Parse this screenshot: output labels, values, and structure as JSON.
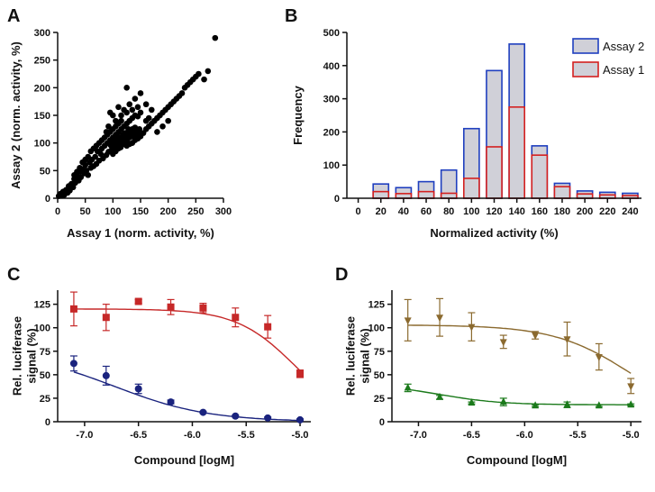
{
  "panels": [
    {
      "label": "A",
      "chart_data": {
        "type": "scatter",
        "title": "",
        "xlabel": "Assay 1 (norm. activity, %)",
        "ylabel": "Assay 2 (norm. activity, %)",
        "xlim": [
          0,
          300
        ],
        "ylim": [
          0,
          300
        ],
        "xticks": [
          0,
          50,
          100,
          150,
          200,
          250,
          300
        ],
        "yticks": [
          0,
          50,
          100,
          150,
          200,
          250,
          300
        ],
        "color": "#000000",
        "series": [
          {
            "name": "compounds",
            "points": [
              [
                2,
                4
              ],
              [
                5,
                8
              ],
              [
                8,
                5
              ],
              [
                10,
                12
              ],
              [
                12,
                6
              ],
              [
                15,
                15
              ],
              [
                18,
                10
              ],
              [
                20,
                22
              ],
              [
                22,
                14
              ],
              [
                25,
                26
              ],
              [
                28,
                20
              ],
              [
                30,
                35
              ],
              [
                32,
                28
              ],
              [
                35,
                40
              ],
              [
                38,
                32
              ],
              [
                40,
                48
              ],
              [
                42,
                38
              ],
              [
                45,
                52
              ],
              [
                48,
                45
              ],
              [
                50,
                60
              ],
              [
                52,
                50
              ],
              [
                55,
                42
              ],
              [
                58,
                65
              ],
              [
                60,
                55
              ],
              [
                62,
                70
              ],
              [
                65,
                58
              ],
              [
                68,
                75
              ],
              [
                70,
                62
              ],
              [
                72,
                85
              ],
              [
                75,
                68
              ],
              [
                78,
                80
              ],
              [
                80,
                90
              ],
              [
                82,
                72
              ],
              [
                85,
                95
              ],
              [
                88,
                78
              ],
              [
                90,
                100
              ],
              [
                92,
                84
              ],
              [
                95,
                105
              ],
              [
                98,
                88
              ],
              [
                100,
                110
              ],
              [
                102,
                95
              ],
              [
                105,
                115
              ],
              [
                108,
                98
              ],
              [
                110,
                120
              ],
              [
                112,
                102
              ],
              [
                115,
                125
              ],
              [
                118,
                105
              ],
              [
                120,
                130
              ],
              [
                122,
                108
              ],
              [
                125,
                135
              ],
              [
                128,
                112
              ],
              [
                130,
                140
              ],
              [
                132,
                115
              ],
              [
                135,
                145
              ],
              [
                138,
                118
              ],
              [
                140,
                150
              ],
              [
                142,
                120
              ],
              [
                145,
                148
              ],
              [
                148,
                125
              ],
              [
                150,
                155
              ],
              [
                100,
                80
              ],
              [
                105,
                85
              ],
              [
                110,
                90
              ],
              [
                115,
                95
              ],
              [
                120,
                100
              ],
              [
                125,
                105
              ],
              [
                130,
                110
              ],
              [
                135,
                112
              ],
              [
                140,
                115
              ],
              [
                145,
                118
              ],
              [
                95,
                120
              ],
              [
                100,
                125
              ],
              [
                105,
                130
              ],
              [
                110,
                135
              ],
              [
                115,
                140
              ],
              [
                90,
                115
              ],
              [
                85,
                110
              ],
              [
                80,
                105
              ],
              [
                88,
                120
              ],
              [
                92,
                130
              ],
              [
                125,
                95
              ],
              [
                130,
                98
              ],
              [
                135,
                100
              ],
              [
                140,
                105
              ],
              [
                145,
                108
              ],
              [
                150,
                112
              ],
              [
                155,
                118
              ],
              [
                160,
                125
              ],
              [
                165,
                130
              ],
              [
                170,
                135
              ],
              [
                175,
                140
              ],
              [
                180,
                145
              ],
              [
                185,
                150
              ],
              [
                190,
                155
              ],
              [
                195,
                160
              ],
              [
                200,
                165
              ],
              [
                205,
                170
              ],
              [
                210,
                175
              ],
              [
                215,
                180
              ],
              [
                220,
                185
              ],
              [
                225,
                190
              ],
              [
                230,
                200
              ],
              [
                235,
                205
              ],
              [
                240,
                210
              ],
              [
                245,
                215
              ],
              [
                250,
                220
              ],
              [
                255,
                225
              ],
              [
                265,
                215
              ],
              [
                272,
                230
              ],
              [
                285,
                290
              ],
              [
                120,
                160
              ],
              [
                110,
                165
              ],
              [
                130,
                170
              ],
              [
                100,
                150
              ],
              [
                95,
                155
              ],
              [
                160,
                170
              ],
              [
                170,
                160
              ],
              [
                180,
                120
              ],
              [
                190,
                130
              ],
              [
                200,
                140
              ],
              [
                60,
                85
              ],
              [
                65,
                90
              ],
              [
                70,
                95
              ],
              [
                75,
                100
              ],
              [
                55,
                75
              ],
              [
                50,
                70
              ],
              [
                45,
                65
              ],
              [
                40,
                55
              ],
              [
                35,
                48
              ],
              [
                30,
                42
              ],
              [
                125,
                200
              ],
              [
                140,
                180
              ],
              [
                150,
                190
              ],
              [
                160,
                140
              ],
              [
                165,
                145
              ],
              [
                105,
                140
              ],
              [
                115,
                150
              ],
              [
                125,
                155
              ],
              [
                135,
                160
              ],
              [
                145,
                165
              ],
              [
                110,
                105
              ],
              [
                115,
                108
              ],
              [
                120,
                112
              ],
              [
                125,
                118
              ],
              [
                130,
                122
              ],
              [
                135,
                125
              ],
              [
                140,
                128
              ],
              [
                118,
                115
              ],
              [
                122,
                118
              ],
              [
                128,
                125
              ],
              [
                100,
                100
              ],
              [
                105,
                102
              ],
              [
                108,
                108
              ],
              [
                112,
                110
              ],
              [
                96,
                96
              ],
              [
                102,
                92
              ],
              [
                98,
                94
              ],
              [
                118,
                98
              ],
              [
                114,
                92
              ],
              [
                126,
                102
              ]
            ]
          }
        ]
      }
    },
    {
      "label": "B",
      "chart_data": {
        "type": "bar",
        "title": "",
        "xlabel": "Normalized activity (%)",
        "ylabel": "Frequency",
        "categories": [
          "0",
          "20",
          "40",
          "60",
          "80",
          "100",
          "120",
          "140",
          "160",
          "180",
          "200",
          "220",
          "240"
        ],
        "ylim": [
          0,
          500
        ],
        "yticks": [
          0,
          100,
          200,
          300,
          400,
          500
        ],
        "overlay": true,
        "series": [
          {
            "name": "Assay 2",
            "color": "#1f3fbf",
            "fill": "#d0d0d8",
            "values": [
              0,
              43,
              32,
              50,
              85,
              210,
              385,
              465,
              158,
              45,
              22,
              18,
              15
            ]
          },
          {
            "name": "Assay 1",
            "color": "#d42020",
            "fill": "#d0d0d8",
            "values": [
              0,
              20,
              14,
              20,
              15,
              60,
              155,
              275,
              130,
              35,
              13,
              10,
              8
            ]
          }
        ],
        "legend": "top-right"
      }
    },
    {
      "label": "C",
      "chart_data": {
        "type": "scatter",
        "title": "",
        "xlabel": "Compound [logM]",
        "ylabel": "Rel. luciferase signal (%)",
        "xlim": [
          -7.25,
          -4.9
        ],
        "ylim": [
          0,
          140
        ],
        "xticks": [
          -7.0,
          -6.5,
          -6.0,
          -5.5,
          -5.0
        ],
        "xtick_labels": [
          "-7.0",
          "-6.5",
          "-6.0",
          "-5.5",
          "-5.0"
        ],
        "yticks": [
          0,
          25,
          50,
          75,
          100,
          125
        ],
        "series": [
          {
            "name": "red",
            "color": "#c62828",
            "marker": "square",
            "x": [
              -7.1,
              -6.8,
              -6.5,
              -6.2,
              -5.9,
              -5.6,
              -5.3,
              -5.0
            ],
            "y": [
              120,
              111,
              128,
              122,
              121,
              111,
              101,
              51
            ],
            "err": [
              18,
              14,
              2,
              8,
              5,
              10,
              12,
              4
            ],
            "fit": {
              "top": 120,
              "bottom": 0,
              "ic50log": -5.05,
              "hill": 1.6
            }
          },
          {
            "name": "blue",
            "color": "#1a237e",
            "marker": "circle",
            "x": [
              -7.1,
              -6.8,
              -6.5,
              -6.2,
              -5.9,
              -5.6,
              -5.3,
              -5.0
            ],
            "y": [
              62,
              49,
              35,
              21,
              10,
              6,
              4,
              2
            ],
            "err": [
              8,
              10,
              5,
              2,
              1,
              1,
              1,
              1
            ],
            "fit": {
              "top": 75,
              "bottom": 0,
              "ic50log": -6.72,
              "hill": 1.0
            }
          }
        ]
      }
    },
    {
      "label": "D",
      "chart_data": {
        "type": "scatter",
        "title": "",
        "xlabel": "Compound [logM]",
        "ylabel": "Rel. luciferase signal (%)",
        "xlim": [
          -7.25,
          -4.9
        ],
        "ylim": [
          0,
          140
        ],
        "xticks": [
          -7.0,
          -6.5,
          -6.0,
          -5.5,
          -5.0
        ],
        "xtick_labels": [
          "-7.0",
          "-6.5",
          "-6.0",
          "-5.5",
          "-5.0"
        ],
        "yticks": [
          0,
          25,
          50,
          75,
          100,
          125
        ],
        "series": [
          {
            "name": "brown",
            "color": "#8b6a2f",
            "marker": "triangle-down",
            "x": [
              -7.1,
              -6.8,
              -6.5,
              -6.2,
              -5.9,
              -5.6,
              -5.3,
              -5.0
            ],
            "y": [
              108,
              111,
              101,
              85,
              92,
              88,
              69,
              38
            ],
            "err": [
              22,
              20,
              15,
              7,
              4,
              18,
              14,
              8
            ],
            "fit": {
              "top": 103,
              "bottom": 0,
              "ic50log": -5.0,
              "hill": 1.2
            }
          },
          {
            "name": "green",
            "color": "#1b7a1b",
            "marker": "triangle-up",
            "x": [
              -7.1,
              -6.8,
              -6.5,
              -6.2,
              -5.9,
              -5.6,
              -5.3,
              -5.0
            ],
            "y": [
              36,
              26,
              20,
              21,
              17,
              18,
              17,
              18
            ],
            "err": [
              4,
              2,
              1,
              4,
              1,
              3,
              1,
              1
            ],
            "fit": {
              "top": 40,
              "bottom": 18,
              "ic50log": -6.8,
              "hill": 1.5
            }
          }
        ]
      }
    }
  ]
}
